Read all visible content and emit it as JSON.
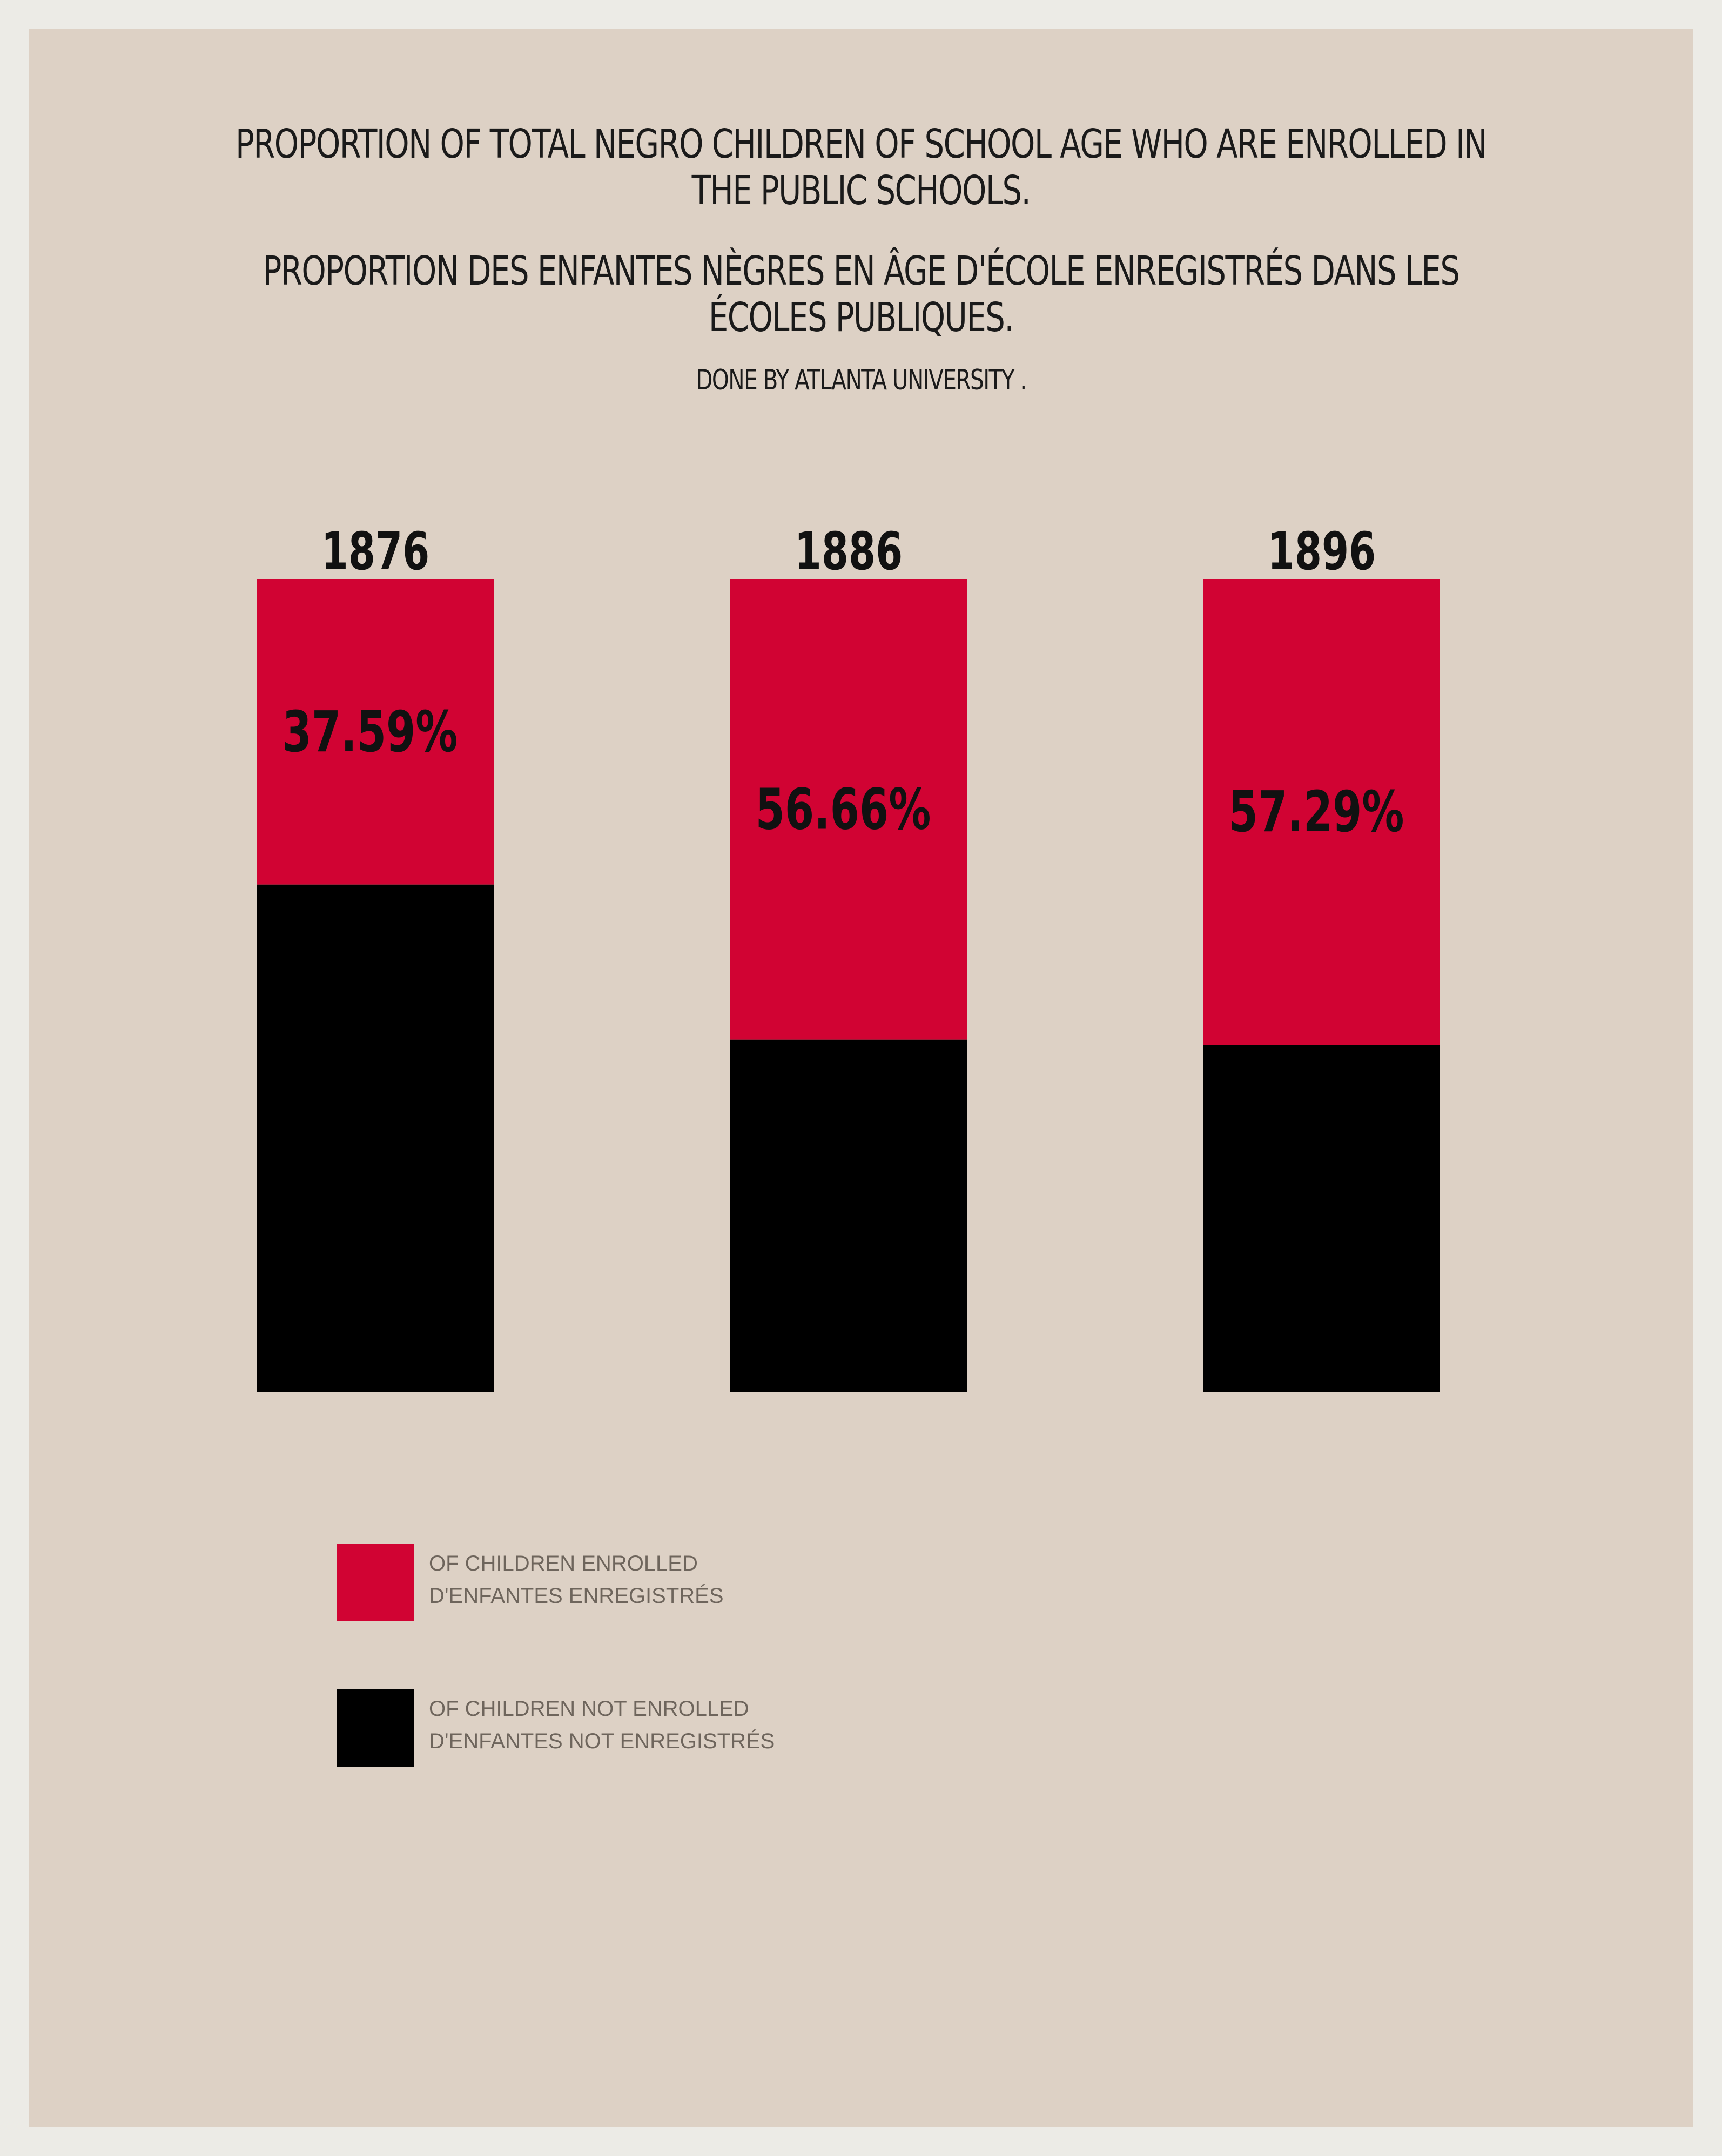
{
  "title_en": "PROPORTION OF TOTAL NEGRO CHILDREN OF SCHOOL AGE WHO ARE ENROLLED IN THE PUBLIC SCHOOLS.",
  "title_fr": "PROPORTION DES ENFANTES NÈGRES EN ÂGE D'ÉCOLE ENREGISTRÉS DANS LES ÉCOLES PUBLIQUES.",
  "credit": "DONE BY ATLANTA UNIVERSITY .",
  "colors": {
    "background": "#ddd1c5",
    "border": "#ecebe6",
    "enrolled": "#d10333",
    "not_enrolled": "#000000"
  },
  "legend": {
    "enrolled_line1": "OF CHILDREN ENROLLED",
    "enrolled_line2": "D'ENFANTES ENREGISTRÉS",
    "not_enrolled_line1": "OF CHILDREN NOT ENROLLED",
    "not_enrolled_line2": "D'ENFANTES NOT ENREGISTRÉS"
  },
  "chart_data": {
    "type": "bar",
    "categories": [
      "1876",
      "1886",
      "1896"
    ],
    "series": [
      {
        "name": "OF CHILDREN ENROLLED",
        "values": [
          37.59,
          56.66,
          57.29
        ]
      },
      {
        "name": "OF CHILDREN NOT ENROLLED",
        "values": [
          62.41,
          43.34,
          42.71
        ]
      }
    ],
    "data_labels": [
      "37.59%",
      "56.66%",
      "57.29%"
    ],
    "stacked": true
  }
}
